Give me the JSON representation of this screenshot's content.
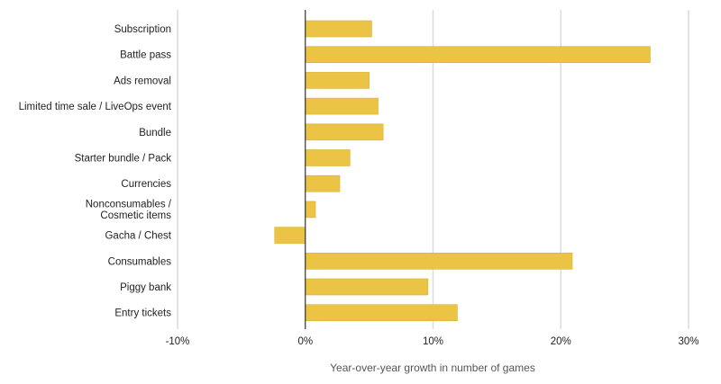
{
  "chart_data": {
    "type": "bar",
    "orientation": "horizontal",
    "categories": [
      [
        "Subscription"
      ],
      [
        "Battle pass"
      ],
      [
        "Ads removal"
      ],
      [
        "Limited time sale / LiveOps event"
      ],
      [
        "Bundle"
      ],
      [
        "Starter bundle / Pack"
      ],
      [
        "Currencies"
      ],
      [
        "Nonconsumables /",
        "Cosmetic items"
      ],
      [
        "Gacha / Chest"
      ],
      [
        "Consumables"
      ],
      [
        "Piggy bank"
      ],
      [
        "Entry tickets"
      ]
    ],
    "values": [
      5.2,
      27.0,
      5.0,
      5.7,
      6.1,
      3.5,
      2.7,
      0.8,
      -2.4,
      20.9,
      9.6,
      11.9
    ],
    "xlim": [
      -10,
      30
    ],
    "xticks": [
      -10,
      0,
      10,
      20,
      30
    ],
    "xtick_labels": [
      "-10%",
      "0%",
      "10%",
      "20%",
      "30%"
    ],
    "xlabel": "Year-over-year growth in number of games",
    "title": "",
    "grid": "vertical",
    "colors": {
      "bar": "#ecc445",
      "bar_edge": "#d9b236",
      "grid": "#dcdcdc",
      "zero_line": "#333333"
    }
  }
}
